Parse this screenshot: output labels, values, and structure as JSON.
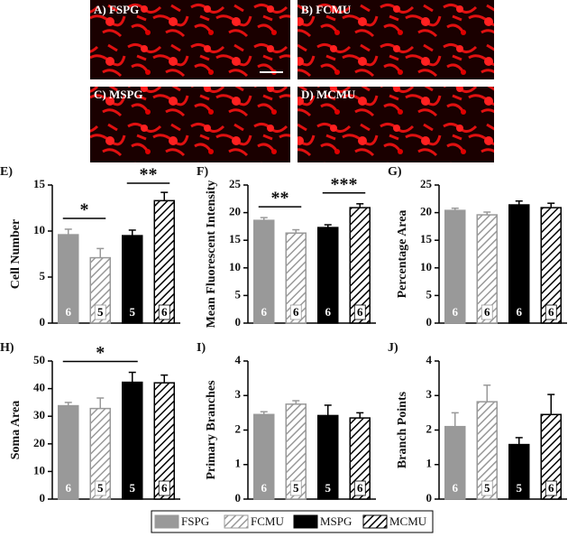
{
  "images": [
    {
      "label": "A) FSPG"
    },
    {
      "label": "B) FCMU"
    },
    {
      "label": "C) MSPG"
    },
    {
      "label": "D) MCMU"
    }
  ],
  "groups": [
    {
      "name": "FSPG",
      "color": "#999999",
      "hatch": false
    },
    {
      "name": "FCMU",
      "color": "#999999",
      "hatch": true
    },
    {
      "name": "MSPG",
      "color": "#000000",
      "hatch": false
    },
    {
      "name": "MCMU",
      "color": "#000000",
      "hatch": true
    }
  ],
  "chart_data": [
    {
      "type": "bar",
      "panel": "E)",
      "ylabel": "Cell Number",
      "values": [
        9.6,
        7.1,
        9.5,
        13.3
      ],
      "errors": [
        0.6,
        1.0,
        0.6,
        0.9
      ],
      "n": [
        6,
        5,
        5,
        6
      ],
      "ylim": [
        0,
        15
      ],
      "yticks": [
        0,
        5,
        10,
        15
      ],
      "significance": [
        {
          "groups": [
            "FSPG",
            "FCMU"
          ],
          "label": "*"
        },
        {
          "groups": [
            "MSPG",
            "MCMU"
          ],
          "label": "**"
        }
      ]
    },
    {
      "type": "bar",
      "panel": "F)",
      "ylabel": "Mean Fluorescent Intensity",
      "values": [
        18.6,
        16.3,
        17.3,
        20.9
      ],
      "errors": [
        0.5,
        0.6,
        0.5,
        0.7
      ],
      "n": [
        6,
        6,
        6,
        6
      ],
      "ylim": [
        0,
        25
      ],
      "yticks": [
        0,
        5,
        10,
        15,
        20,
        25
      ],
      "significance": [
        {
          "groups": [
            "FSPG",
            "FCMU"
          ],
          "label": "**"
        },
        {
          "groups": [
            "MSPG",
            "MCMU"
          ],
          "label": "***"
        }
      ]
    },
    {
      "type": "bar",
      "panel": "G)",
      "ylabel": "Percentage Area",
      "values": [
        20.4,
        19.6,
        21.4,
        20.9
      ],
      "errors": [
        0.4,
        0.5,
        0.7,
        0.8
      ],
      "n": [
        6,
        6,
        6,
        6
      ],
      "ylim": [
        0,
        25
      ],
      "yticks": [
        0,
        5,
        10,
        15,
        20,
        25
      ],
      "significance": []
    },
    {
      "type": "bar",
      "panel": "H)",
      "ylabel": "Soma Area",
      "values": [
        33.8,
        32.8,
        42.3,
        42.1
      ],
      "errors": [
        1.2,
        3.8,
        3.6,
        2.8
      ],
      "n": [
        6,
        5,
        5,
        6
      ],
      "ylim": [
        0,
        50
      ],
      "yticks": [
        0,
        10,
        20,
        30,
        40,
        50
      ],
      "significance": [
        {
          "groups": [
            "FSPG",
            "MSPG"
          ],
          "label": "*"
        }
      ]
    },
    {
      "type": "bar",
      "panel": "I)",
      "ylabel": "Primary Branches",
      "values": [
        2.45,
        2.75,
        2.42,
        2.35
      ],
      "errors": [
        0.08,
        0.1,
        0.3,
        0.15
      ],
      "n": [
        6,
        5,
        5,
        6
      ],
      "ylim": [
        0,
        4
      ],
      "yticks": [
        0,
        1,
        2,
        3,
        4
      ],
      "significance": []
    },
    {
      "type": "bar",
      "panel": "J)",
      "ylabel": "Branch Points",
      "values": [
        2.1,
        2.82,
        1.58,
        2.45
      ],
      "errors": [
        0.4,
        0.48,
        0.2,
        0.58
      ],
      "n": [
        6,
        5,
        5,
        6
      ],
      "ylim": [
        0,
        4
      ],
      "yticks": [
        0,
        1,
        2,
        3,
        4
      ],
      "significance": []
    }
  ]
}
